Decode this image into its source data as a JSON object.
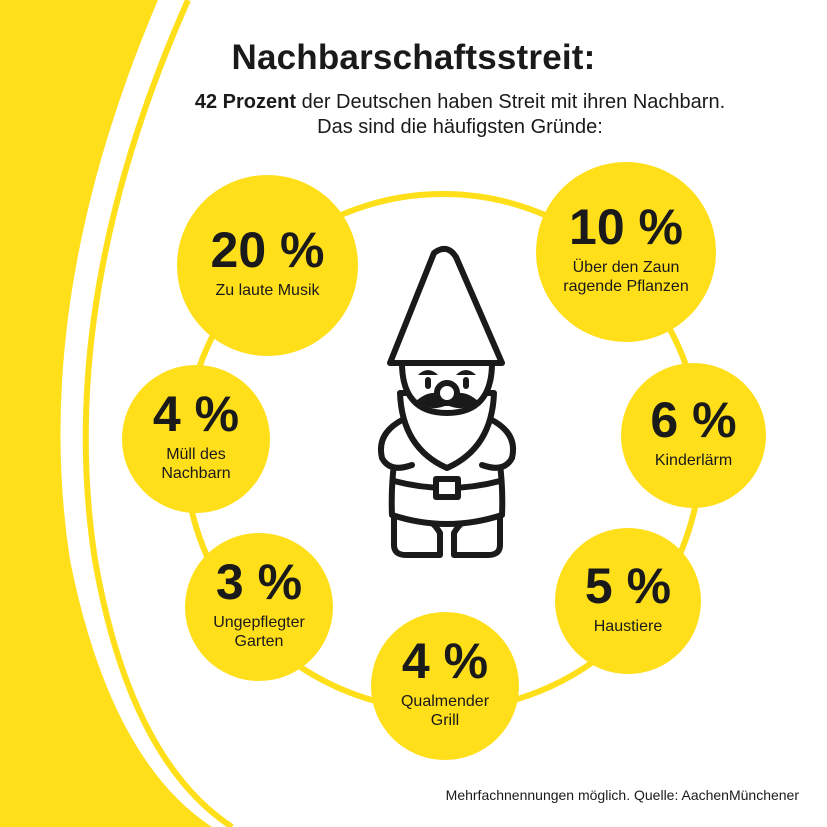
{
  "header": {
    "title": "Nachbarschaftsstreit:",
    "subtitle_bold": "42 Prozent",
    "subtitle_rest": " der Deutschen haben Streit mit ihren Nachbarn.",
    "subtitle_line2": "Das sind die häufigsten Gründe:"
  },
  "colors": {
    "accent": "#FFDE1A",
    "text": "#1a1a1a",
    "background": "#ffffff"
  },
  "icon": "garden-gnome-icon",
  "chart_data": {
    "type": "bubble-list",
    "categories": [
      "Zu laute Musik",
      "Über den Zaun ragende Pflanzen",
      "Müll des Nachbarn",
      "Kinderlärm",
      "Ungepflegter Garten",
      "Haustiere",
      "Qualmender Grill"
    ],
    "values": [
      20,
      10,
      4,
      6,
      3,
      5,
      4
    ],
    "unit": "%",
    "items": [
      {
        "value": 20,
        "pct_label": "20 %",
        "label": "Zu laute Musik"
      },
      {
        "value": 10,
        "pct_label": "10 %",
        "label": "Über den Zaun\nragende Pflanzen"
      },
      {
        "value": 4,
        "pct_label": "4 %",
        "label": "Müll des\nNachbarn"
      },
      {
        "value": 6,
        "pct_label": "6 %",
        "label": "Kinderlärm"
      },
      {
        "value": 3,
        "pct_label": "3 %",
        "label": "Ungepflegter\nGarten"
      },
      {
        "value": 5,
        "pct_label": "5 %",
        "label": "Haustiere"
      },
      {
        "value": 4,
        "pct_label": "4 %",
        "label": "Qualmender\nGrill"
      }
    ]
  },
  "footnote": "Mehrfachnennungen möglich. Quelle: AachenMünchener"
}
